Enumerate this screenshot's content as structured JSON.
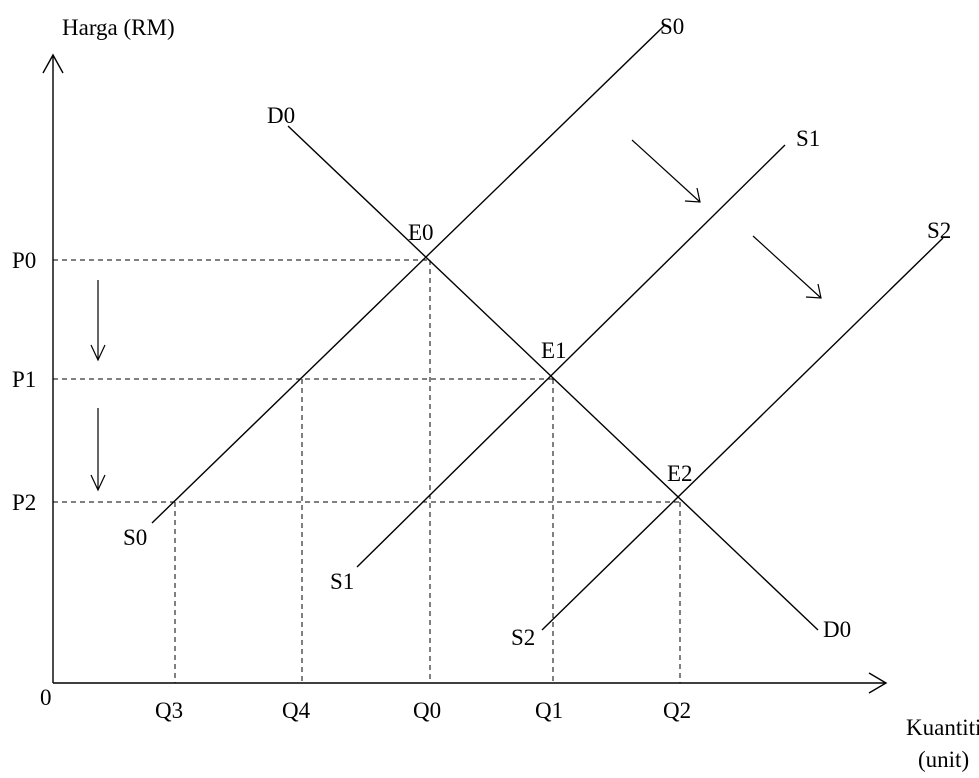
{
  "axes": {
    "y_title": "Harga (RM)",
    "x_title_line1": "Kuantiti",
    "x_title_line2": "(unit)",
    "origin": "0"
  },
  "prices": [
    "P0",
    "P1",
    "P2"
  ],
  "quantities": [
    "Q3",
    "Q4",
    "Q0",
    "Q1",
    "Q2"
  ],
  "curves": {
    "demand": "D0",
    "supply_0": "S0",
    "supply_1": "S1",
    "supply_2": "S2"
  },
  "equilibria": [
    "E0",
    "E1",
    "E2"
  ]
}
